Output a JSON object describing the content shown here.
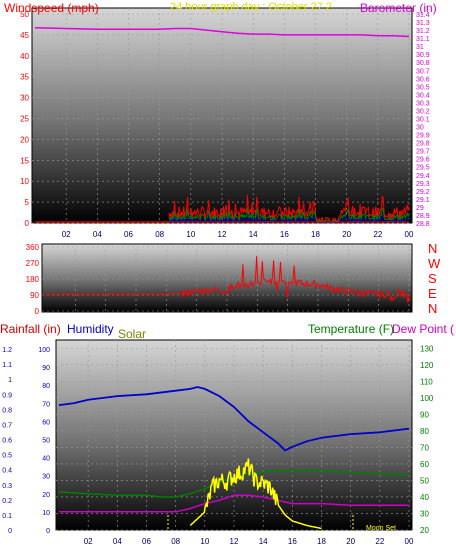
{
  "colors": {
    "windspeed": "#ff0000",
    "gust": "#ff0000",
    "average": "#008000",
    "avg_blue": "#0000cc",
    "barometer": "#e000e0",
    "title": "#e0e000",
    "direction": "#ff0000",
    "rainfall": "#cc0000",
    "humidity": "#0000cc",
    "solar": "#808000",
    "temperature": "#008000",
    "dewpoint": "#cc00cc",
    "solar_line": "#ffff00"
  },
  "header": {
    "wind_label": "Windspeed (mph)",
    "title": "24 hour graph day : October 27 2",
    "baro_label": "Barometer (in)"
  },
  "direction_letters": [
    "N",
    "W",
    "S",
    "E",
    "N"
  ],
  "lower_labels": {
    "rainfall": "Rainfall (in)",
    "humidity": "Humidity",
    "solar": "Solar",
    "temperature": "Temperature (F)",
    "dewpoint": "Dew Point (",
    "moon_set": "Moon Set"
  },
  "chart_data": [
    {
      "type": "line",
      "name": "wind-barometer",
      "x_ticks": [
        "02",
        "04",
        "06",
        "08",
        "10",
        "12",
        "14",
        "16",
        "18",
        "20",
        "22",
        "00"
      ],
      "ylabel": "Windspeed (mph)",
      "y_ticks": [
        0,
        5,
        10,
        15,
        20,
        25,
        30,
        35,
        40,
        45,
        50
      ],
      "ylim": [
        0,
        50
      ],
      "y2label": "Barometer (in)",
      "y2_ticks": [
        "28.8",
        "28.9",
        "29",
        "29.1",
        "29.2",
        "29.3",
        "29.4",
        "29.5",
        "29.6",
        "29.7",
        "29.8",
        "29.9",
        "30",
        "30.1",
        "30.2",
        "30.3",
        "30.4",
        "30.5",
        "30.6",
        "30.7",
        "30.8",
        "30.9",
        "31",
        "31.1",
        "31.2",
        "31.3",
        "31.4"
      ],
      "y2lim": [
        28.8,
        31.45
      ],
      "barometer": {
        "x": [
          0,
          2,
          4,
          6,
          8,
          9,
          10,
          11,
          12,
          13,
          14,
          15,
          16,
          17,
          18,
          19,
          20,
          21,
          22,
          23,
          24
        ],
        "y": [
          31.23,
          31.22,
          31.21,
          31.21,
          31.21,
          31.22,
          31.22,
          31.2,
          31.18,
          31.16,
          31.15,
          31.15,
          31.14,
          31.14,
          31.14,
          31.14,
          31.14,
          31.14,
          31.13,
          31.13,
          31.12
        ]
      },
      "wind_active_range": [
        8.6,
        24
      ],
      "wind_typical": [
        1,
        4
      ],
      "wind_gust_max": 8.5
    },
    {
      "type": "line",
      "name": "wind-direction",
      "y_ticks": [
        0,
        90,
        180,
        270,
        360
      ],
      "ylim": [
        0,
        360
      ],
      "x": [
        0,
        2,
        4,
        6,
        8,
        9,
        10,
        11,
        12,
        12.5,
        13,
        14,
        15,
        16,
        17,
        18,
        19,
        20,
        21,
        22,
        23,
        24
      ],
      "y": [
        95,
        95,
        95,
        95,
        95,
        100,
        110,
        120,
        110,
        150,
        140,
        160,
        170,
        165,
        155,
        150,
        125,
        110,
        100,
        95,
        90,
        90
      ]
    },
    {
      "type": "line",
      "name": "rain-humidity-solar-temperature",
      "x_ticks": [
        "02",
        "04",
        "06",
        "08",
        "10",
        "12",
        "14",
        "16",
        "18",
        "20",
        "22",
        "00"
      ],
      "y_rain_ticks": [
        "0",
        "0.1",
        "0.2",
        "0.3",
        "0.4",
        "0.5",
        "0.6",
        "0.7",
        "0.8",
        "0.9",
        "1",
        "1.1",
        "1.2"
      ],
      "y_humidity_ticks": [
        0,
        10,
        20,
        30,
        40,
        50,
        60,
        70,
        80,
        90,
        100
      ],
      "y_temp_ticks": [
        20,
        30,
        40,
        50,
        60,
        70,
        80,
        90,
        100,
        110,
        120,
        130
      ],
      "ylim_temp": [
        20,
        135
      ],
      "humidity": {
        "x": [
          0,
          1,
          2,
          4,
          6,
          8,
          9,
          9.5,
          10,
          11,
          12,
          13,
          14,
          15,
          15.5,
          16,
          17,
          18,
          20,
          22,
          24
        ],
        "y": [
          69,
          70,
          72,
          74,
          75,
          77,
          78,
          79,
          78,
          74,
          68,
          60,
          54,
          48,
          44,
          46,
          49,
          51,
          53,
          54,
          56
        ]
      },
      "temperature": {
        "x": [
          0,
          2,
          4,
          6,
          7,
          8,
          9,
          10,
          11,
          12,
          13,
          14,
          15,
          16,
          18,
          20,
          22,
          24
        ],
        "y": [
          43,
          42,
          41,
          41,
          40,
          40,
          42,
          45,
          49,
          52,
          54,
          55,
          56,
          56,
          56,
          55,
          54,
          53
        ]
      },
      "dewpoint": {
        "x": [
          0,
          2,
          4,
          6,
          8,
          9,
          10,
          11,
          12,
          13,
          14,
          15,
          16,
          17,
          18,
          20,
          22,
          24
        ],
        "y": [
          31,
          31,
          31,
          31,
          31,
          33,
          36,
          38,
          41,
          41,
          40,
          38,
          36,
          36,
          36,
          35,
          35,
          35
        ]
      },
      "solar": {
        "x": [
          9,
          10,
          10.5,
          11,
          11.5,
          12,
          12.5,
          13,
          13.5,
          14,
          14.5,
          15,
          15.5,
          16,
          17,
          18
        ],
        "y": [
          0.03,
          0.12,
          0.28,
          0.33,
          0.32,
          0.36,
          0.38,
          0.42,
          0.32,
          0.31,
          0.28,
          0.17,
          0.1,
          0.06,
          0.03,
          0.01
        ]
      }
    }
  ]
}
